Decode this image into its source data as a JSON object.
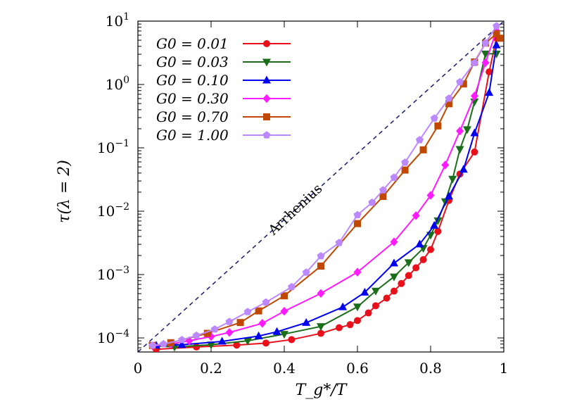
{
  "chart_data": {
    "type": "line",
    "xlabel": "T_g*/T",
    "ylabel": "τ(λ = 2)",
    "xlim": [
      0,
      1
    ],
    "ylim": [
      6e-05,
      10
    ],
    "yscale": "log",
    "grid": false,
    "legend_position": "top-left",
    "x_ticks": [
      "0",
      "0.2",
      "0.4",
      "0.6",
      "0.8",
      "1"
    ],
    "y_ticks": [
      {
        "base": "10",
        "exp": "1",
        "value": 10
      },
      {
        "base": "10",
        "exp": "0",
        "value": 1
      },
      {
        "base": "10",
        "exp": "−1",
        "value": 0.1
      },
      {
        "base": "10",
        "exp": "−2",
        "value": 0.01
      },
      {
        "base": "10",
        "exp": "−3",
        "value": 0.001
      },
      {
        "base": "10",
        "exp": "−4",
        "value": 0.0001
      }
    ],
    "annotation": {
      "text": "Arrhenius",
      "line": {
        "x": [
          0,
          1
        ],
        "y": [
          6e-05,
          10
        ],
        "style": "dashed",
        "color": "#1a1a6e"
      }
    },
    "series": [
      {
        "name": "G0 = 0.01",
        "color": "#e8101a",
        "marker": "circle",
        "x": [
          0.05,
          0.16,
          0.27,
          0.35,
          0.42,
          0.5,
          0.55,
          0.58,
          0.6,
          0.63,
          0.65,
          0.68,
          0.7,
          0.72,
          0.74,
          0.76,
          0.78,
          0.8,
          0.82,
          0.85,
          0.88,
          0.92,
          0.96,
          0.98
        ],
        "y": [
          6.6e-05,
          7.2e-05,
          7.7e-05,
          8.3e-05,
          9.4e-05,
          0.000118,
          0.000145,
          0.000162,
          0.000188,
          0.000248,
          0.000322,
          0.000425,
          0.000548,
          0.000722,
          0.000965,
          0.00128,
          0.00172,
          0.00248,
          0.0048,
          0.0148,
          0.0386,
          0.086,
          1.58,
          5.4
        ]
      },
      {
        "name": "G0 = 0.03",
        "color": "#1a6e1a",
        "marker": "triangle-down",
        "x": [
          0.04,
          0.1,
          0.2,
          0.3,
          0.4,
          0.5,
          0.6,
          0.65,
          0.7,
          0.74,
          0.78,
          0.8,
          0.82,
          0.84,
          0.86,
          0.88,
          0.9,
          0.92,
          0.95,
          0.98
        ],
        "y": [
          7.5e-05,
          7.2e-05,
          7.8e-05,
          9e-05,
          0.000115,
          0.000152,
          0.00031,
          0.000552,
          0.000925,
          0.00155,
          0.0026,
          0.0042,
          0.0071,
          0.0142,
          0.0322,
          0.095,
          0.195,
          0.535,
          3.05,
          3.05
        ]
      },
      {
        "name": "G0 = 0.10",
        "color": "#0000ee",
        "marker": "triangle-up",
        "x": [
          0.05,
          0.12,
          0.23,
          0.33,
          0.38,
          0.46,
          0.56,
          0.62,
          0.7,
          0.77,
          0.81,
          0.85,
          0.89,
          0.92,
          0.96,
          0.98
        ],
        "y": [
          7.6e-05,
          7.8e-05,
          8.8e-05,
          0.000107,
          0.000125,
          0.000174,
          0.000307,
          0.000523,
          0.00151,
          0.00302,
          0.00594,
          0.0172,
          0.0456,
          0.171,
          0.742,
          4.18
        ]
      },
      {
        "name": "G0 = 0.30",
        "color": "#ff1aff",
        "marker": "diamond",
        "x": [
          0.04,
          0.09,
          0.14,
          0.2,
          0.25,
          0.34,
          0.4,
          0.5,
          0.6,
          0.7,
          0.76,
          0.8,
          0.84,
          0.88,
          0.92,
          0.95,
          0.98
        ],
        "y": [
          7.5e-05,
          8e-05,
          9e-05,
          0.000105,
          0.000122,
          0.00017,
          0.000264,
          0.000505,
          0.00109,
          0.00328,
          0.00854,
          0.0178,
          0.0537,
          0.184,
          0.658,
          2.21,
          7.05
        ]
      },
      {
        "name": "G0 = 0.70",
        "color": "#c04800",
        "marker": "square",
        "x": [
          0.04,
          0.09,
          0.19,
          0.28,
          0.33,
          0.4,
          0.5,
          0.6,
          0.67,
          0.73,
          0.78,
          0.82,
          0.85,
          0.89,
          0.92,
          0.95,
          0.98,
          0.99
        ],
        "y": [
          7.6e-05,
          8.4e-05,
          0.000118,
          0.000175,
          0.000267,
          0.000462,
          0.00136,
          0.00638,
          0.0171,
          0.0446,
          0.093,
          0.222,
          0.497,
          1.02,
          2.27,
          4.49,
          6.32,
          5.37
        ]
      },
      {
        "name": "G0 = 1.00",
        "color": "#bb88ff",
        "marker": "pentagon",
        "x": [
          0.04,
          0.07,
          0.12,
          0.16,
          0.21,
          0.25,
          0.3,
          0.35,
          0.42,
          0.46,
          0.5,
          0.55,
          0.6,
          0.64,
          0.67,
          0.7,
          0.73,
          0.77,
          0.81,
          0.85,
          0.88,
          0.92,
          0.95,
          0.98
        ],
        "y": [
          7.6e-05,
          8e-05,
          9.3e-05,
          0.000109,
          0.000137,
          0.00018,
          0.000258,
          0.000365,
          0.000637,
          0.00108,
          0.00196,
          0.00317,
          0.00872,
          0.0137,
          0.0215,
          0.034,
          0.0587,
          0.133,
          0.292,
          0.601,
          1.09,
          2.2,
          4.49,
          8.35
        ]
      }
    ]
  }
}
